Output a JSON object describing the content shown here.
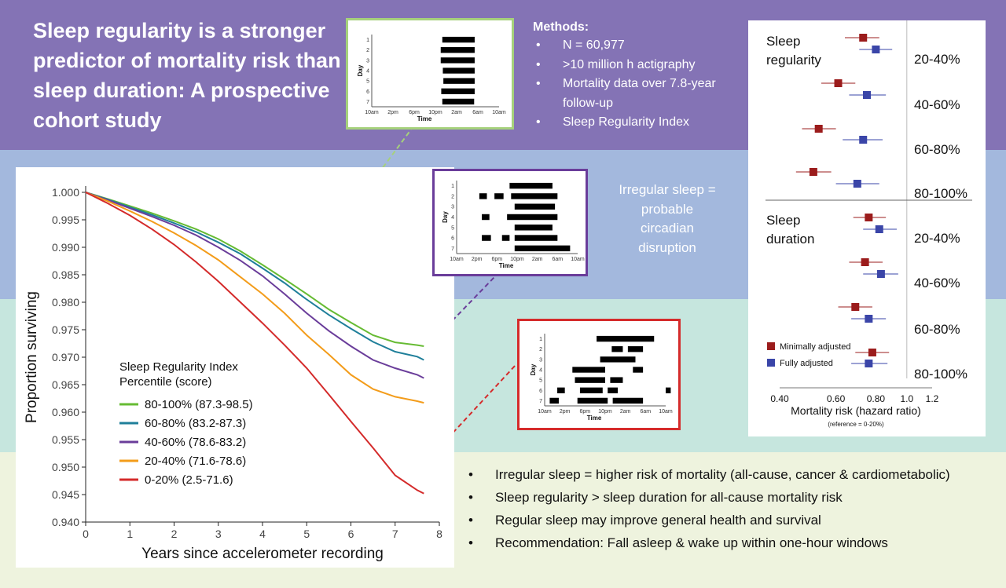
{
  "title": "Sleep regularity is a stronger predictor of mortality risk than sleep duration: A prospective cohort study",
  "methods": {
    "heading": "Methods:",
    "items": [
      "N = 60,977",
      ">10 million h actigraphy",
      "Mortality data over 7.8-year follow-up",
      "Sleep Regularity Index"
    ]
  },
  "callout": "Irregular sleep = probable circadian disruption",
  "conclusions": [
    "Irregular sleep = higher risk of mortality (all-cause, cancer & cardiometabolic)",
    "Sleep regularity > sleep duration for all-cause mortality risk",
    "Regular sleep may improve general health and survival",
    "Recommendation: Fall asleep & wake up within one-hour windows"
  ],
  "colors": {
    "band_purple": "#8473b5",
    "band_blue": "#a3b8dd",
    "band_teal": "#c6e6de",
    "band_cream": "#eef3de",
    "minimally_adjusted": "#9b1c1c",
    "fully_adjusted": "#3a45a8"
  },
  "chart_data": [
    {
      "type": "line",
      "xlabel": "Years since accelerometer recording",
      "ylabel": "Proportion surviving",
      "xlim": [
        0,
        8
      ],
      "ylim": [
        0.94,
        1.0
      ],
      "xticks": [
        "0",
        "1",
        "2",
        "3",
        "4",
        "5",
        "6",
        "7",
        "8"
      ],
      "yticks": [
        "1.000",
        "0.995",
        "0.990",
        "0.985",
        "0.980",
        "0.975",
        "0.970",
        "0.965",
        "0.960",
        "0.955",
        "0.950",
        "0.945",
        "0.940"
      ],
      "legend_title": [
        "Sleep Regularity Index",
        "Percentile (score)"
      ],
      "legend_position": "bottom-left",
      "x": [
        0,
        0.5,
        1,
        1.5,
        2,
        2.5,
        3,
        3.5,
        4,
        4.5,
        5,
        5.5,
        6,
        6.5,
        7,
        7.5,
        7.65
      ],
      "series": [
        {
          "name": "80-100% (87.3-98.5)",
          "color": "#66bb33",
          "values": [
            1.0,
            0.9988,
            0.9975,
            0.9962,
            0.9948,
            0.9933,
            0.9915,
            0.9893,
            0.9868,
            0.9842,
            0.9815,
            0.9787,
            0.9763,
            0.974,
            0.9727,
            0.9722,
            0.972
          ]
        },
        {
          "name": "60-80% (83.2-87.3)",
          "color": "#1f7f9a",
          "values": [
            1.0,
            0.9987,
            0.9973,
            0.9959,
            0.9944,
            0.9928,
            0.9909,
            0.9888,
            0.9862,
            0.9835,
            0.9805,
            0.9777,
            0.9752,
            0.9728,
            0.971,
            0.9701,
            0.9695
          ]
        },
        {
          "name": "40-60% (78.6-83.2)",
          "color": "#6a3d9a",
          "values": [
            1.0,
            0.9986,
            0.9971,
            0.9956,
            0.994,
            0.9922,
            0.99,
            0.9876,
            0.9848,
            0.9815,
            0.978,
            0.9748,
            0.972,
            0.9695,
            0.968,
            0.9668,
            0.9662
          ]
        },
        {
          "name": "20-40% (71.6-78.6)",
          "color": "#f39c1a",
          "values": [
            1.0,
            0.9984,
            0.9966,
            0.9947,
            0.9926,
            0.9903,
            0.9877,
            0.9846,
            0.9815,
            0.978,
            0.974,
            0.9705,
            0.9668,
            0.9642,
            0.9628,
            0.962,
            0.9617
          ]
        },
        {
          "name": "0-20% (2.5-71.6)",
          "color": "#d42a2a",
          "values": [
            1.0,
            0.998,
            0.9958,
            0.9933,
            0.9905,
            0.9873,
            0.9838,
            0.98,
            0.9762,
            0.9722,
            0.968,
            0.9632,
            0.9583,
            0.9535,
            0.9485,
            0.9458,
            0.9452
          ]
        }
      ]
    },
    {
      "type": "scatter",
      "subtype": "forest",
      "xlabel": "Mortality risk (hazard ratio)",
      "note": "(reference = 0-20%)",
      "scale": "log",
      "xlim": [
        0.4,
        1.2
      ],
      "xticks": [
        "0.40",
        "0.60",
        "0.80",
        "1.0",
        "1.2"
      ],
      "reference_line": 1.0,
      "legend_position": "bottom-left",
      "series_names": [
        "Minimally adjusted",
        "Fully adjusted"
      ],
      "groups": [
        {
          "label": [
            "Sleep",
            "regularity"
          ],
          "rows": [
            {
              "label": "20-40%",
              "minimally": {
                "hr": 0.73,
                "lo": 0.64,
                "hi": 0.82
              },
              "fully": {
                "hr": 0.8,
                "lo": 0.71,
                "hi": 0.9
              }
            },
            {
              "label": "40-60%",
              "minimally": {
                "hr": 0.61,
                "lo": 0.54,
                "hi": 0.69
              },
              "fully": {
                "hr": 0.75,
                "lo": 0.66,
                "hi": 0.86
              }
            },
            {
              "label": "60-80%",
              "minimally": {
                "hr": 0.53,
                "lo": 0.47,
                "hi": 0.6
              },
              "fully": {
                "hr": 0.73,
                "lo": 0.63,
                "hi": 0.84
              }
            },
            {
              "label": "80-100%",
              "minimally": {
                "hr": 0.51,
                "lo": 0.45,
                "hi": 0.58
              },
              "fully": {
                "hr": 0.7,
                "lo": 0.6,
                "hi": 0.82
              }
            }
          ]
        },
        {
          "label": [
            "Sleep",
            "duration"
          ],
          "rows": [
            {
              "label": "20-40%",
              "minimally": {
                "hr": 0.76,
                "lo": 0.68,
                "hi": 0.86
              },
              "fully": {
                "hr": 0.82,
                "lo": 0.73,
                "hi": 0.93
              }
            },
            {
              "label": "40-60%",
              "minimally": {
                "hr": 0.74,
                "lo": 0.66,
                "hi": 0.84
              },
              "fully": {
                "hr": 0.83,
                "lo": 0.73,
                "hi": 0.94
              }
            },
            {
              "label": "60-80%",
              "minimally": {
                "hr": 0.69,
                "lo": 0.61,
                "hi": 0.78
              },
              "fully": {
                "hr": 0.76,
                "lo": 0.67,
                "hi": 0.86
              }
            },
            {
              "label": "80-100%",
              "minimally": {
                "hr": 0.78,
                "lo": 0.69,
                "hi": 0.88
              },
              "fully": {
                "hr": 0.76,
                "lo": 0.67,
                "hi": 0.87
              }
            }
          ]
        }
      ]
    },
    {
      "type": "bar",
      "subtype": "actogram",
      "example": "regular",
      "xlabel": "Time",
      "ylabel": "Day",
      "xticks": [
        "10am",
        "2pm",
        "6pm",
        "10pm",
        "2am",
        "6am",
        "10am"
      ],
      "yticks": [
        "1",
        "2",
        "3",
        "4",
        "5",
        "6",
        "7"
      ],
      "sleep_hours": [
        [
          [
            23.3,
            29.4
          ]
        ],
        [
          [
            23.0,
            29.4
          ]
        ],
        [
          [
            23.0,
            29.4
          ]
        ],
        [
          [
            23.4,
            29.4
          ]
        ],
        [
          [
            23.5,
            29.4
          ]
        ],
        [
          [
            23.1,
            29.4
          ]
        ],
        [
          [
            23.3,
            29.3
          ]
        ]
      ]
    },
    {
      "type": "bar",
      "subtype": "actogram",
      "example": "moderately irregular",
      "xlabel": "Time",
      "ylabel": "Day",
      "xticks": [
        "10am",
        "2pm",
        "6pm",
        "10pm",
        "2am",
        "6am",
        "10am"
      ],
      "yticks": [
        "1",
        "2",
        "3",
        "4",
        "5",
        "6",
        "7"
      ],
      "sleep_hours": [
        [
          [
            20.5,
            29.0
          ]
        ],
        [
          [
            14.5,
            16.0
          ],
          [
            17.5,
            19.3
          ],
          [
            20.8,
            30.0
          ]
        ],
        [
          [
            21.5,
            29.5
          ]
        ],
        [
          [
            15.0,
            16.5
          ],
          [
            20.0,
            30.0
          ]
        ],
        [
          [
            21.5,
            29.0
          ]
        ],
        [
          [
            15.0,
            16.8
          ],
          [
            19.0,
            20.5
          ],
          [
            21.5,
            30.0
          ]
        ],
        [
          [
            21.5,
            32.5
          ]
        ]
      ]
    },
    {
      "type": "bar",
      "subtype": "actogram",
      "example": "irregular",
      "xlabel": "Time",
      "ylabel": "Day",
      "xticks": [
        "10am",
        "2pm",
        "6pm",
        "10pm",
        "2am",
        "6am",
        "10am"
      ],
      "yticks": [
        "1",
        "2",
        "3",
        "4",
        "5",
        "6",
        "7"
      ],
      "sleep_hours": [
        [
          [
            20.3,
            31.7
          ]
        ],
        [
          [
            23.3,
            25.5
          ],
          [
            26.5,
            29.5
          ]
        ],
        [
          [
            21.0,
            28.0
          ]
        ],
        [
          [
            15.5,
            22.0
          ],
          [
            27.5,
            29.5
          ]
        ],
        [
          [
            16.0,
            22.0
          ],
          [
            23.0,
            25.5
          ]
        ],
        [
          [
            12.5,
            14.0
          ],
          [
            17.0,
            21.5
          ],
          [
            22.5,
            24.5
          ],
          [
            34.0,
            35.0
          ]
        ],
        [
          [
            11.0,
            12.8
          ],
          [
            16.5,
            22.5
          ],
          [
            23.5,
            29.5
          ]
        ]
      ]
    }
  ]
}
